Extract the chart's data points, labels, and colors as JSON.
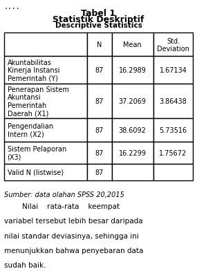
{
  "title1": "Tabel 1",
  "title2": "Statistik Deskriptif",
  "title3": "Descriptive Statistics",
  "col_headers": [
    "",
    "N",
    "Mean",
    "Std.\nDeviation"
  ],
  "rows": [
    [
      "Akuntabilitas\nKinerja Instansi\nPemerintah (Y)",
      "87",
      "16.2989",
      "1.67134"
    ],
    [
      "Penerapan Sistem\nAkuntansi\nPemerintah\nDaerah (X1)",
      "87",
      "37.2069",
      "3.86438"
    ],
    [
      "Pengendalian\nIntern (X2)",
      "87",
      "38.6092",
      "5.73516"
    ],
    [
      "Sistem Pelaporan\n(X3)",
      "87",
      "16.2299",
      "1.75672"
    ],
    [
      "Valid N (listwise)",
      "87",
      "",
      ""
    ]
  ],
  "footer": "Sumber: data olahan SPSS 20,2015",
  "body_text_lines": [
    "        Nilai    rata-rata    keempat",
    "variabel tersebut lebih besar daripada",
    "nilai standar deviasinya, sehingga ini",
    "menunjukkan bahwa penyebaran data",
    "sudah baik."
  ],
  "header_prefix": "....",
  "bg_color": "#ffffff",
  "text_color": "#000000",
  "table_border_color": "#000000"
}
